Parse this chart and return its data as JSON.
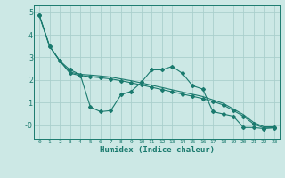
{
  "xlabel": "Humidex (Indice chaleur)",
  "bg_color": "#cce8e5",
  "line_color": "#1a7a6e",
  "grid_color": "#aacfcc",
  "xlim": [
    -0.5,
    23.5
  ],
  "ylim": [
    -0.6,
    5.3
  ],
  "yticks": [
    0,
    1,
    2,
    3,
    4,
    5
  ],
  "ytick_labels": [
    "-0",
    "1",
    "2",
    "3",
    "4",
    "5"
  ],
  "xticks": [
    0,
    1,
    2,
    3,
    4,
    5,
    6,
    7,
    8,
    9,
    10,
    11,
    12,
    13,
    14,
    15,
    16,
    17,
    18,
    19,
    20,
    21,
    22,
    23
  ],
  "series1_x": [
    0,
    1,
    2,
    3,
    4,
    5,
    6,
    7,
    8,
    9,
    10,
    11,
    12,
    13,
    14,
    15,
    16,
    17,
    18,
    19,
    20,
    21,
    22,
    23
  ],
  "series1_y": [
    4.85,
    3.5,
    2.85,
    2.45,
    2.25,
    0.8,
    0.6,
    0.65,
    1.35,
    1.5,
    1.9,
    2.45,
    2.45,
    2.6,
    2.3,
    1.75,
    1.6,
    0.6,
    0.5,
    0.4,
    -0.1,
    -0.1,
    -0.15,
    -0.1
  ],
  "series2_x": [
    0,
    1,
    2,
    3,
    4,
    5,
    6,
    7,
    8,
    9,
    10,
    11,
    12,
    13,
    14,
    15,
    16,
    17,
    18,
    19,
    20,
    21,
    22,
    23
  ],
  "series2_y": [
    4.85,
    3.5,
    2.85,
    2.3,
    2.2,
    2.15,
    2.1,
    2.05,
    1.97,
    1.88,
    1.78,
    1.68,
    1.58,
    1.48,
    1.38,
    1.28,
    1.18,
    1.05,
    0.9,
    0.65,
    0.4,
    0.05,
    -0.12,
    -0.12
  ],
  "series3_x": [
    0,
    1,
    2,
    3,
    4,
    5,
    6,
    7,
    8,
    9,
    10,
    11,
    12,
    13,
    14,
    15,
    16,
    17,
    18,
    19,
    20,
    21,
    22,
    23
  ],
  "series3_y": [
    4.85,
    3.5,
    2.85,
    2.35,
    2.25,
    2.22,
    2.18,
    2.13,
    2.05,
    1.97,
    1.87,
    1.77,
    1.67,
    1.57,
    1.47,
    1.37,
    1.27,
    1.12,
    0.97,
    0.72,
    0.47,
    0.12,
    -0.07,
    -0.07
  ]
}
